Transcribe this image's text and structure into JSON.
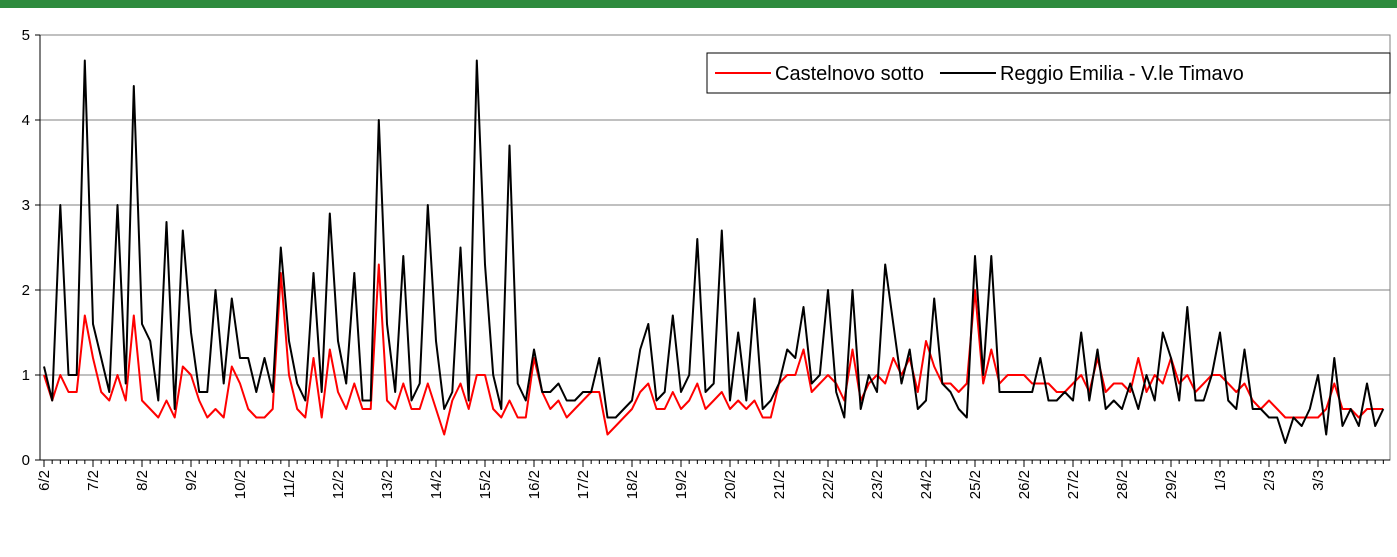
{
  "chart_data": {
    "type": "line",
    "categories": [
      "6/2",
      null,
      null,
      null,
      null,
      null,
      "7/2",
      null,
      null,
      null,
      null,
      null,
      "8/2",
      null,
      null,
      null,
      null,
      null,
      "9/2",
      null,
      null,
      null,
      null,
      null,
      "10/2",
      null,
      null,
      null,
      null,
      null,
      "11/2",
      null,
      null,
      null,
      null,
      null,
      "12/2",
      null,
      null,
      null,
      null,
      null,
      "13/2",
      null,
      null,
      null,
      null,
      null,
      "14/2",
      null,
      null,
      null,
      null,
      null,
      "15/2",
      null,
      null,
      null,
      null,
      null,
      "16/2",
      null,
      null,
      null,
      null,
      null,
      "17/2",
      null,
      null,
      null,
      null,
      null,
      "18/2",
      null,
      null,
      null,
      null,
      null,
      "19/2",
      null,
      null,
      null,
      null,
      null,
      "20/2",
      null,
      null,
      null,
      null,
      null,
      "21/2",
      null,
      null,
      null,
      null,
      null,
      "22/2",
      null,
      null,
      null,
      null,
      null,
      "23/2",
      null,
      null,
      null,
      null,
      null,
      "24/2",
      null,
      null,
      null,
      null,
      null,
      "25/2",
      null,
      null,
      null,
      null,
      null,
      "26/2",
      null,
      null,
      null,
      null,
      null,
      "27/2",
      null,
      null,
      null,
      null,
      null,
      "28/2",
      null,
      null,
      null,
      null,
      null,
      "29/2",
      null,
      null,
      null,
      null,
      null,
      "1/3",
      null,
      null,
      null,
      null,
      null,
      "2/3",
      null,
      null,
      null,
      null,
      null,
      "3/3",
      null,
      null,
      null,
      null,
      null,
      null,
      null,
      null
    ],
    "series": [
      {
        "name": "Castelnovo sotto",
        "color": "#ff0000",
        "values": [
          1.0,
          0.7,
          1.0,
          0.8,
          0.8,
          1.7,
          1.2,
          0.8,
          0.7,
          1.0,
          0.7,
          1.7,
          0.7,
          0.6,
          0.5,
          0.7,
          0.5,
          1.1,
          1.0,
          0.7,
          0.5,
          0.6,
          0.5,
          1.1,
          0.9,
          0.6,
          0.5,
          0.5,
          0.6,
          2.2,
          1.0,
          0.6,
          0.5,
          1.2,
          0.5,
          1.3,
          0.8,
          0.6,
          0.9,
          0.6,
          0.6,
          2.3,
          0.7,
          0.6,
          0.9,
          0.6,
          0.6,
          0.9,
          0.6,
          0.3,
          0.7,
          0.9,
          0.6,
          1.0,
          1.0,
          0.6,
          0.5,
          0.7,
          0.5,
          0.5,
          1.2,
          0.8,
          0.6,
          0.7,
          0.5,
          0.6,
          0.7,
          0.8,
          0.8,
          0.3,
          0.4,
          0.5,
          0.6,
          0.8,
          0.9,
          0.6,
          0.6,
          0.8,
          0.6,
          0.7,
          0.9,
          0.6,
          0.7,
          0.8,
          0.6,
          0.7,
          0.6,
          0.7,
          0.5,
          0.5,
          0.9,
          1.0,
          1.0,
          1.3,
          0.8,
          0.9,
          1.0,
          0.9,
          0.7,
          1.3,
          0.7,
          0.9,
          1.0,
          0.9,
          1.2,
          1.0,
          1.2,
          0.8,
          1.4,
          1.1,
          0.9,
          0.9,
          0.8,
          0.9,
          2.0,
          0.9,
          1.3,
          0.9,
          1.0,
          1.0,
          1.0,
          0.9,
          0.9,
          0.9,
          0.8,
          0.8,
          0.9,
          1.0,
          0.8,
          1.2,
          0.8,
          0.9,
          0.9,
          0.8,
          1.2,
          0.8,
          1.0,
          0.9,
          1.2,
          0.9,
          1.0,
          0.8,
          0.9,
          1.0,
          1.0,
          0.9,
          0.8,
          0.9,
          0.7,
          0.6,
          0.7,
          0.6,
          0.5,
          0.5,
          0.5,
          0.5,
          0.5,
          0.6,
          0.9,
          0.6,
          0.6,
          0.5,
          0.6,
          0.6,
          0.6
        ]
      },
      {
        "name": "Reggio Emilia - V.le Timavo",
        "color": "#000000",
        "values": [
          1.1,
          0.7,
          3.0,
          1.0,
          1.0,
          4.7,
          1.6,
          1.2,
          0.8,
          3.0,
          0.9,
          4.4,
          1.6,
          1.4,
          0.7,
          2.8,
          0.6,
          2.7,
          1.5,
          0.8,
          0.8,
          2.0,
          0.9,
          1.9,
          1.2,
          1.2,
          0.8,
          1.2,
          0.8,
          2.5,
          1.4,
          0.9,
          0.7,
          2.2,
          0.8,
          2.9,
          1.4,
          0.9,
          2.2,
          0.7,
          0.7,
          4.0,
          1.6,
          0.8,
          2.4,
          0.7,
          0.9,
          3.0,
          1.4,
          0.6,
          0.8,
          2.5,
          0.7,
          4.7,
          2.3,
          1.0,
          0.6,
          3.7,
          0.9,
          0.7,
          1.3,
          0.8,
          0.8,
          0.9,
          0.7,
          0.7,
          0.8,
          0.8,
          1.2,
          0.5,
          0.5,
          0.6,
          0.7,
          1.3,
          1.6,
          0.7,
          0.8,
          1.7,
          0.8,
          1.0,
          2.6,
          0.8,
          0.9,
          2.7,
          0.7,
          1.5,
          0.7,
          1.9,
          0.6,
          0.7,
          0.9,
          1.3,
          1.2,
          1.8,
          0.9,
          1.0,
          2.0,
          0.8,
          0.5,
          2.0,
          0.6,
          1.0,
          0.8,
          2.3,
          1.6,
          0.9,
          1.3,
          0.6,
          0.7,
          1.9,
          0.9,
          0.8,
          0.6,
          0.5,
          2.4,
          1.0,
          2.4,
          0.8,
          0.8,
          0.8,
          0.8,
          0.8,
          1.2,
          0.7,
          0.7,
          0.8,
          0.7,
          1.5,
          0.7,
          1.3,
          0.6,
          0.7,
          0.6,
          0.9,
          0.6,
          1.0,
          0.7,
          1.5,
          1.2,
          0.7,
          1.8,
          0.7,
          0.7,
          1.0,
          1.5,
          0.7,
          0.6,
          1.3,
          0.6,
          0.6,
          0.5,
          0.5,
          0.2,
          0.5,
          0.4,
          0.6,
          1.0,
          0.3,
          1.2,
          0.4,
          0.6,
          0.4,
          0.9,
          0.4,
          0.6
        ]
      }
    ],
    "ylim": [
      0,
      5
    ],
    "yticks": [
      0,
      1,
      2,
      3,
      4,
      5
    ],
    "grid": true,
    "legend": "top-right"
  }
}
